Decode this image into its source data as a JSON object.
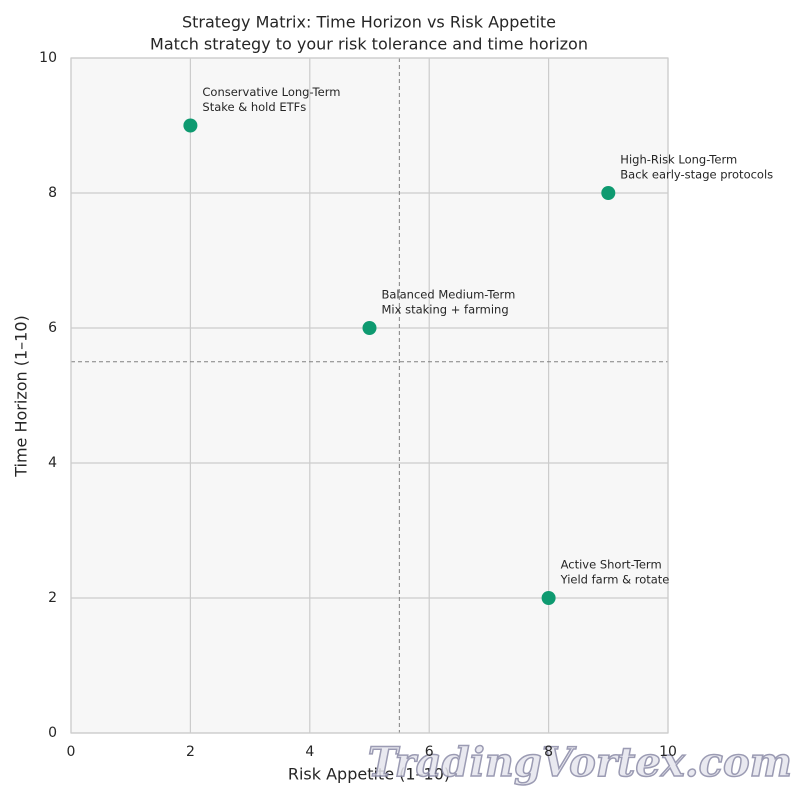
{
  "chart_data": {
    "type": "scatter",
    "title": "Strategy Matrix: Time Horizon vs Risk Appetite",
    "subtitle": "Match strategy to your risk tolerance and time horizon",
    "x_label": "Risk Appetite (1–10)",
    "y_label": "Time Horizon (1–10)",
    "xlim": [
      0,
      10
    ],
    "ylim": [
      0,
      10
    ],
    "xticks": [
      0,
      2,
      4,
      6,
      8,
      10
    ],
    "yticks": [
      0,
      2,
      4,
      6,
      8,
      10
    ],
    "grid": true,
    "series": [
      {
        "color": "#0e9a70",
        "x": [
          2,
          9,
          5,
          8
        ],
        "values": [
          9,
          8,
          6,
          2
        ],
        "annotations": [
          [
            "Conservative Long-Term",
            "Stake & hold ETFs"
          ],
          [
            "High-Risk Long-Term",
            "Back early-stage protocols"
          ],
          [
            "Balanced Medium-Term",
            "Mix staking + farming"
          ],
          [
            "Active Short-Term",
            "Yield farm & rotate"
          ]
        ]
      }
    ],
    "reference_lines": {
      "x": 5.5,
      "y": 5.5
    },
    "watermark": "TradingVortex.com"
  }
}
